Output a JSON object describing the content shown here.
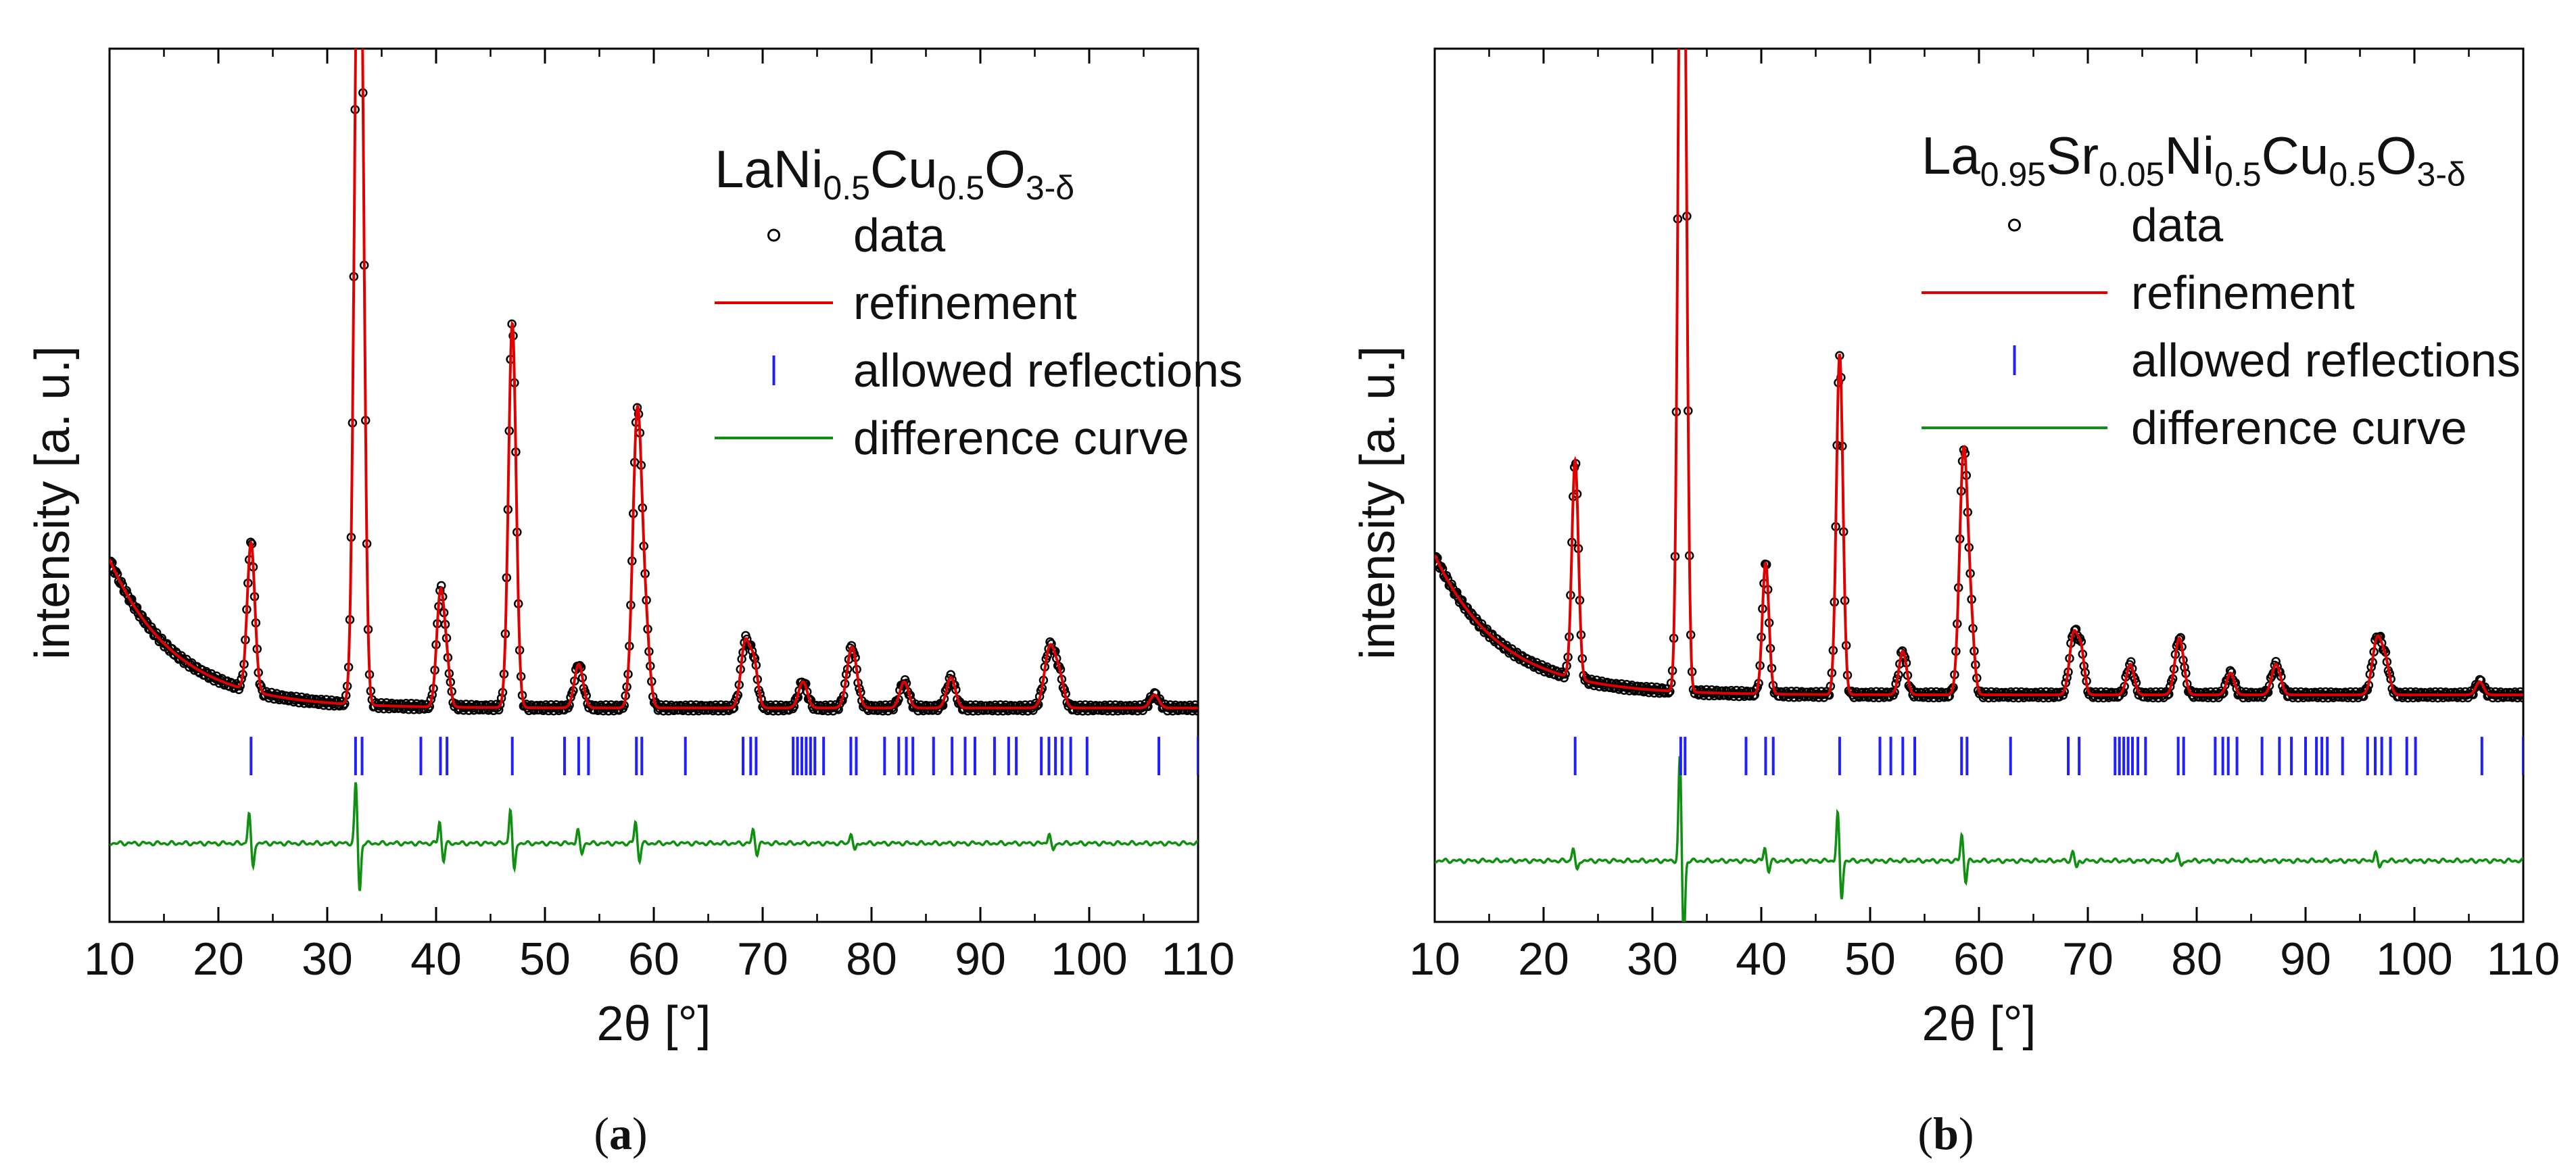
{
  "chart_data": [
    {
      "type": "line",
      "panel_label": "a",
      "compound": [
        {
          "t": "LaNi",
          "sub": false
        },
        {
          "t": "0.5",
          "sub": true
        },
        {
          "t": "Cu",
          "sub": false
        },
        {
          "t": "0.5",
          "sub": true
        },
        {
          "t": "O",
          "sub": false
        },
        {
          "t": "3-δ",
          "sub": true
        }
      ],
      "xlabel": "2θ [°]",
      "ylabel": "intensity [a. u.]",
      "xlim": [
        10,
        110
      ],
      "ylim": [
        0,
        100
      ],
      "xticks": [
        10,
        20,
        30,
        40,
        50,
        60,
        70,
        80,
        90,
        100,
        110
      ],
      "grid": false,
      "legend_position": "top-right",
      "legend": [
        {
          "label": "data",
          "style": "circle",
          "color": "#000000"
        },
        {
          "label": "refinement",
          "style": "line",
          "color": "#e00000"
        },
        {
          "label": "allowed reflections",
          "style": "tick",
          "color": "#2020ff"
        },
        {
          "label": "difference curve",
          "style": "line",
          "color": "#109010"
        }
      ],
      "background": {
        "base": 24.5,
        "amp": 17,
        "decay": 6
      },
      "peaks": [
        {
          "pos": 23.0,
          "height": 17,
          "width": 0.35
        },
        {
          "pos": 32.8,
          "height": 81,
          "width": 0.35
        },
        {
          "pos": 33.2,
          "height": 40,
          "width": 0.3
        },
        {
          "pos": 40.4,
          "height": 13,
          "width": 0.35
        },
        {
          "pos": 41.0,
          "height": 4,
          "width": 0.3
        },
        {
          "pos": 47.0,
          "height": 44,
          "width": 0.35
        },
        {
          "pos": 53.1,
          "height": 5,
          "width": 0.4
        },
        {
          "pos": 58.5,
          "height": 34,
          "width": 0.42
        },
        {
          "pos": 59.3,
          "height": 7,
          "width": 0.35
        },
        {
          "pos": 68.4,
          "height": 7.5,
          "width": 0.4
        },
        {
          "pos": 69.2,
          "height": 5,
          "width": 0.35
        },
        {
          "pos": 73.7,
          "height": 3,
          "width": 0.4
        },
        {
          "pos": 78.2,
          "height": 7,
          "width": 0.45
        },
        {
          "pos": 83.0,
          "height": 3,
          "width": 0.4
        },
        {
          "pos": 87.3,
          "height": 3.5,
          "width": 0.4
        },
        {
          "pos": 96.4,
          "height": 7,
          "width": 0.5
        },
        {
          "pos": 97.3,
          "height": 3,
          "width": 0.4
        },
        {
          "pos": 106.0,
          "height": 1.5,
          "width": 0.4
        }
      ],
      "reflections": [
        23.0,
        32.6,
        33.2,
        38.6,
        40.4,
        41.0,
        47.0,
        51.8,
        53.1,
        54.0,
        58.4,
        58.9,
        62.9,
        68.2,
        68.9,
        69.4,
        72.8,
        73.2,
        73.6,
        74.0,
        74.4,
        74.8,
        75.6,
        78.1,
        78.6,
        81.2,
        82.5,
        83.2,
        83.8,
        85.7,
        87.4,
        88.6,
        89.5,
        91.3,
        92.6,
        93.3,
        95.6,
        96.3,
        96.9,
        97.5,
        98.3,
        99.8,
        106.4,
        110.0
      ],
      "reflection_y": 19,
      "diff_baseline": 9,
      "diff_spikes": [
        {
          "pos": 23.0,
          "amp": 3.5
        },
        {
          "pos": 32.8,
          "amp": 7
        },
        {
          "pos": 40.5,
          "amp": 2.5
        },
        {
          "pos": 47.0,
          "amp": 4
        },
        {
          "pos": 53.2,
          "amp": 1.5
        },
        {
          "pos": 58.5,
          "amp": 2.5
        },
        {
          "pos": 69.3,
          "amp": 1.5
        },
        {
          "pos": 78.3,
          "amp": 1.2
        },
        {
          "pos": 96.5,
          "amp": 1.2
        }
      ]
    },
    {
      "type": "line",
      "panel_label": "b",
      "compound": [
        {
          "t": "La",
          "sub": false
        },
        {
          "t": "0.95",
          "sub": true
        },
        {
          "t": "Sr",
          "sub": false
        },
        {
          "t": "0.05",
          "sub": true
        },
        {
          "t": "Ni",
          "sub": false
        },
        {
          "t": "0.5",
          "sub": true
        },
        {
          "t": "Cu",
          "sub": false
        },
        {
          "t": "0.5",
          "sub": true
        },
        {
          "t": "O",
          "sub": false
        },
        {
          "t": "3-δ",
          "sub": true
        }
      ],
      "xlabel": "2θ [°]",
      "ylabel": "intensity [a. u.]",
      "xlim": [
        10,
        110
      ],
      "ylim": [
        0,
        100
      ],
      "xticks": [
        10,
        20,
        30,
        40,
        50,
        60,
        70,
        80,
        90,
        100,
        110
      ],
      "grid": false,
      "legend_position": "top-right",
      "legend": [
        {
          "label": "data",
          "style": "circle",
          "color": "#000000"
        },
        {
          "label": "refinement",
          "style": "line",
          "color": "#e00000"
        },
        {
          "label": "allowed reflections",
          "style": "tick",
          "color": "#2020ff"
        },
        {
          "label": "difference curve",
          "style": "line",
          "color": "#109010"
        }
      ],
      "background": {
        "base": 26,
        "amp": 16,
        "decay": 6
      },
      "peaks": [
        {
          "pos": 22.9,
          "height": 25,
          "width": 0.3
        },
        {
          "pos": 32.6,
          "height": 87,
          "width": 0.28
        },
        {
          "pos": 33.0,
          "height": 52,
          "width": 0.25
        },
        {
          "pos": 40.4,
          "height": 15,
          "width": 0.3
        },
        {
          "pos": 47.2,
          "height": 39,
          "width": 0.3
        },
        {
          "pos": 53.0,
          "height": 5,
          "width": 0.35
        },
        {
          "pos": 58.6,
          "height": 28,
          "width": 0.38
        },
        {
          "pos": 59.3,
          "height": 6,
          "width": 0.3
        },
        {
          "pos": 68.7,
          "height": 7,
          "width": 0.38
        },
        {
          "pos": 69.4,
          "height": 4.5,
          "width": 0.3
        },
        {
          "pos": 73.9,
          "height": 3.5,
          "width": 0.35
        },
        {
          "pos": 78.4,
          "height": 6.5,
          "width": 0.4
        },
        {
          "pos": 83.1,
          "height": 2.5,
          "width": 0.35
        },
        {
          "pos": 87.3,
          "height": 3.5,
          "width": 0.4
        },
        {
          "pos": 96.6,
          "height": 6.5,
          "width": 0.45
        },
        {
          "pos": 97.4,
          "height": 3,
          "width": 0.35
        },
        {
          "pos": 106.0,
          "height": 1.5,
          "width": 0.35
        }
      ],
      "reflections": [
        22.9,
        32.6,
        33.0,
        38.6,
        40.4,
        41.1,
        47.2,
        50.9,
        51.9,
        53.0,
        54.1,
        58.4,
        58.9,
        62.9,
        68.2,
        69.2,
        72.5,
        72.9,
        73.3,
        73.7,
        74.1,
        74.6,
        75.3,
        78.3,
        78.8,
        81.7,
        82.4,
        82.9,
        83.7,
        86.0,
        87.6,
        88.7,
        90.0,
        91.0,
        91.5,
        92.0,
        93.4,
        95.7,
        96.4,
        97.0,
        97.8,
        99.3,
        100.1,
        106.2,
        110.0
      ],
      "reflection_y": 19,
      "diff_baseline": 7,
      "diff_spikes": [
        {
          "pos": 22.9,
          "amp": 1.5
        },
        {
          "pos": 32.7,
          "amp": 12
        },
        {
          "pos": 40.5,
          "amp": 1.5
        },
        {
          "pos": 47.2,
          "amp": 5.5
        },
        {
          "pos": 58.6,
          "amp": 3
        },
        {
          "pos": 68.8,
          "amp": 1
        },
        {
          "pos": 78.4,
          "amp": 1
        },
        {
          "pos": 96.6,
          "amp": 1
        }
      ]
    }
  ],
  "colors": {
    "data": "#000000",
    "refinement": "#e00000",
    "reflections": "#2020ff",
    "difference": "#109010"
  }
}
